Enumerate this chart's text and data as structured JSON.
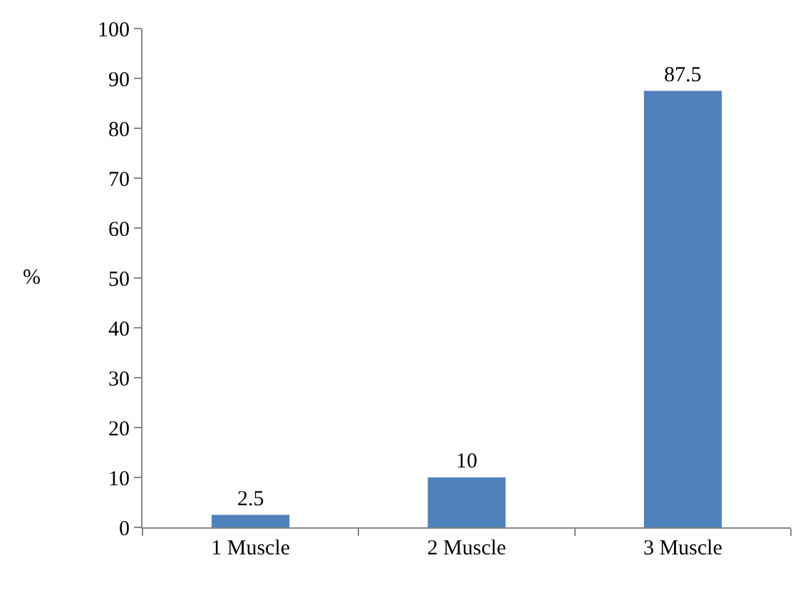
{
  "chart_data": {
    "type": "bar",
    "ylabel": "%",
    "categories": [
      "1 Muscle",
      "2 Muscle",
      "3 Muscle"
    ],
    "values": [
      2.5,
      10,
      87.5
    ],
    "color": "#4f81bd",
    "ylim": [
      0,
      100
    ],
    "yticks": [
      0,
      10,
      20,
      30,
      40,
      50,
      60,
      70,
      80,
      90,
      100
    ],
    "data_labels": true
  }
}
